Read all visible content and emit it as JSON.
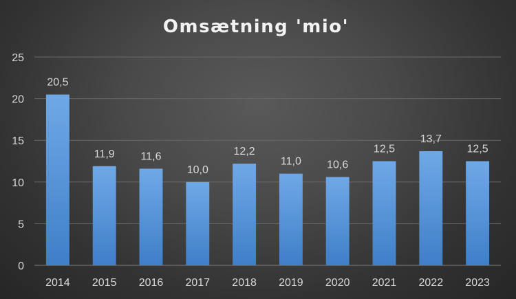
{
  "chart_data": {
    "type": "bar",
    "title": "Omsætning 'mio'",
    "xlabel": "",
    "ylabel": "",
    "categories": [
      "2014",
      "2015",
      "2016",
      "2017",
      "2018",
      "2019",
      "2020",
      "2021",
      "2022",
      "2023"
    ],
    "values": [
      20.5,
      11.9,
      11.6,
      10.0,
      12.2,
      11.0,
      10.6,
      12.5,
      13.7,
      12.5
    ],
    "data_labels": [
      "20,5",
      "11,9",
      "11,6",
      "10,0",
      "12,2",
      "11,0",
      "10,6",
      "12,5",
      "13,7",
      "12,5"
    ],
    "ylim": [
      0,
      25
    ],
    "yticks": [
      0,
      5,
      10,
      15,
      20,
      25
    ],
    "grid": true,
    "legend": "none",
    "colors": {
      "bar_top": "#6fa8e6",
      "bar_bottom": "#3f7fc8",
      "background": "#404040"
    }
  }
}
